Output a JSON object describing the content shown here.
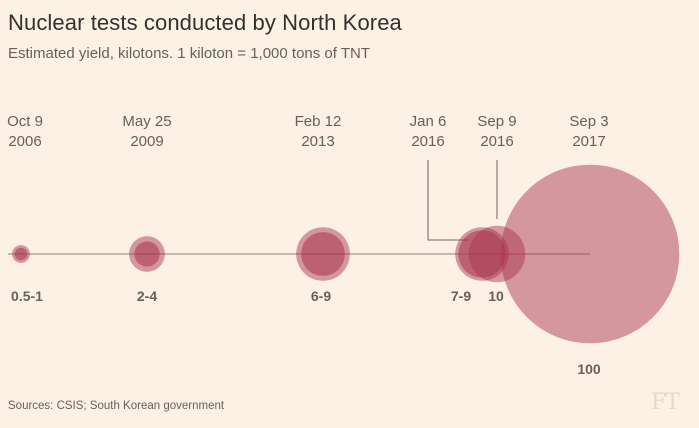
{
  "title": "Nuclear tests conducted by North Korea",
  "subtitle": "Estimated yield, kilotons. 1 kiloton = 1,000 tons of TNT",
  "source": "Sources: CSIS; South Korean government",
  "logo": "FT",
  "colors": {
    "background": "#fdf1e6",
    "bubble": "#a8344e",
    "axis": "#8a7f78",
    "text": "#66605c"
  },
  "chart_data": {
    "type": "bubble",
    "title": "Nuclear tests conducted by North Korea",
    "subtitle": "Estimated yield, kilotons. 1 kiloton = 1,000 tons of TNT",
    "tests": [
      {
        "month_day": "Oct 9",
        "year": "2006",
        "yield_label": "0.5-1",
        "yield_min": 0.5,
        "yield_max": 1
      },
      {
        "month_day": "May 25",
        "year": "2009",
        "yield_label": "2-4",
        "yield_min": 2,
        "yield_max": 4
      },
      {
        "month_day": "Feb 12",
        "year": "2013",
        "yield_label": "6-9",
        "yield_min": 6,
        "yield_max": 9
      },
      {
        "month_day": "Jan 6",
        "year": "2016",
        "yield_label": "7-9",
        "yield_min": 7,
        "yield_max": 9
      },
      {
        "month_day": "Sep 9",
        "year": "2016",
        "yield_label": "10",
        "yield_min": 10,
        "yield_max": 10
      },
      {
        "month_day": "Sep 3",
        "year": "2017",
        "yield_label": "100",
        "yield_min": 100,
        "yield_max": 100
      }
    ]
  }
}
